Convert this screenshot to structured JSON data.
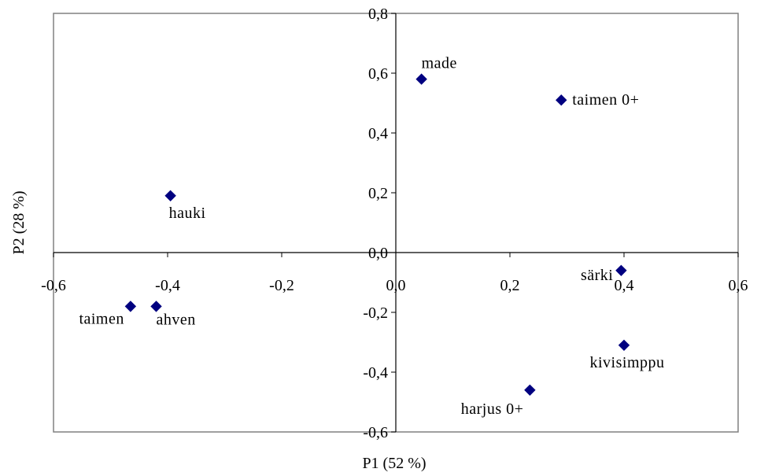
{
  "chart_data": {
    "type": "scatter",
    "xlabel": "P1 (52 %)",
    "ylabel": "P2 (28 %)",
    "xlim": [
      -0.6,
      0.6
    ],
    "ylim": [
      -0.6,
      0.8
    ],
    "x_ticks": [
      "-0,6",
      "-0,4",
      "-0,2",
      "0,0",
      "0,2",
      "0,4",
      "0,6"
    ],
    "y_ticks": [
      "0,8",
      "0,6",
      "0,4",
      "0,2",
      "0,0",
      "-0,2",
      "-0,4",
      "-0,6"
    ],
    "grid": false,
    "marker_color": "#000080",
    "points": [
      {
        "label": "made",
        "x": 0.045,
        "y": 0.58
      },
      {
        "label": "taimen 0+",
        "x": 0.29,
        "y": 0.51
      },
      {
        "label": "hauki",
        "x": -0.395,
        "y": 0.19
      },
      {
        "label": "särki",
        "x": 0.395,
        "y": -0.06
      },
      {
        "label": "taimen",
        "x": -0.465,
        "y": -0.18
      },
      {
        "label": "ahven",
        "x": -0.42,
        "y": -0.18
      },
      {
        "label": "kivisimppu",
        "x": 0.4,
        "y": -0.31
      },
      {
        "label": "harjus 0+",
        "x": 0.235,
        "y": -0.46
      }
    ]
  }
}
